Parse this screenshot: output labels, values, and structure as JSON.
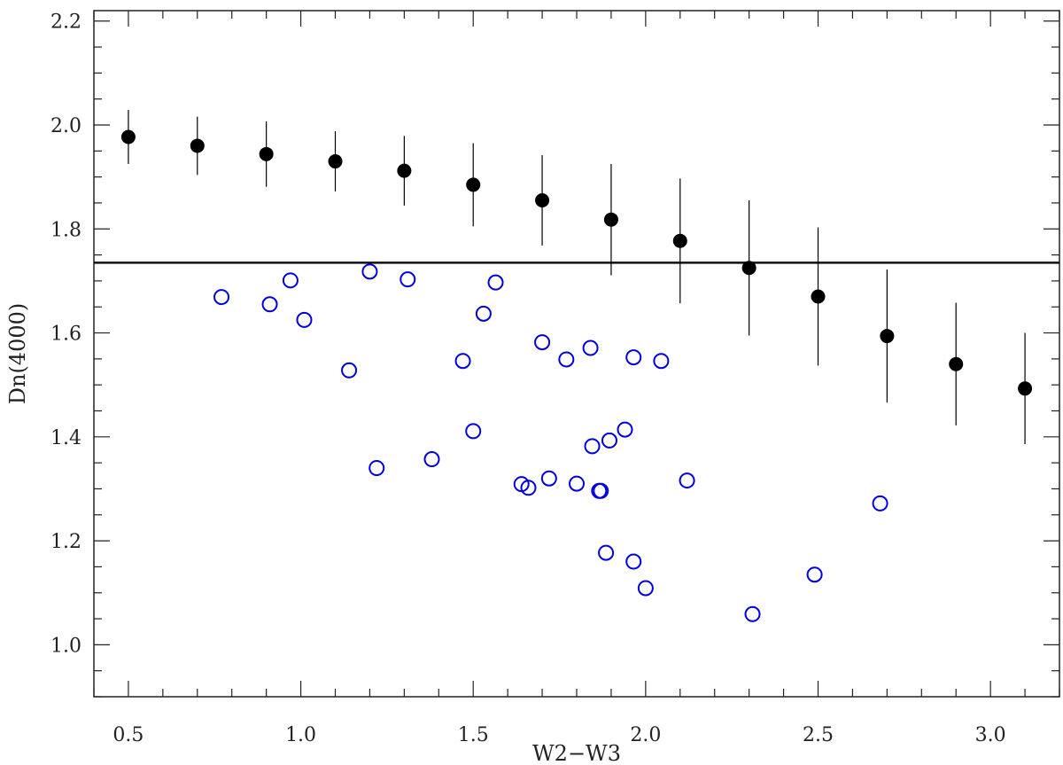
{
  "chart_data": {
    "type": "scatter",
    "title": "",
    "xlabel": "W2−W3",
    "ylabel": "Dn(4000)",
    "xlim": [
      0.4,
      3.2
    ],
    "ylim": [
      0.9,
      2.22
    ],
    "x_ticks_major": [
      0.5,
      1.0,
      1.5,
      2.0,
      2.5,
      3.0
    ],
    "x_tick_labels": [
      "0.5",
      "1.0",
      "1.5",
      "2.0",
      "2.5",
      "3.0"
    ],
    "y_ticks_major": [
      1.0,
      1.2,
      1.4,
      1.6,
      1.8,
      2.0,
      2.2
    ],
    "y_tick_labels": [
      "1.0",
      "1.2",
      "1.4",
      "1.6",
      "1.8",
      "2.0",
      "2.2"
    ],
    "horizontal_line": 1.735,
    "colors": {
      "binned": "#000000",
      "individual": "#0000dd",
      "axes": "#222222"
    },
    "series": [
      {
        "name": "binned-mean",
        "style": "filled-circle-errorbar",
        "x": [
          0.5,
          0.7,
          0.9,
          1.1,
          1.3,
          1.5,
          1.7,
          1.9,
          2.1,
          2.3,
          2.5,
          2.7,
          2.9,
          3.1
        ],
        "y": [
          1.977,
          1.96,
          1.944,
          1.93,
          1.912,
          1.885,
          1.855,
          1.818,
          1.777,
          1.725,
          1.67,
          1.594,
          1.54,
          1.493
        ],
        "err": [
          0.052,
          0.056,
          0.063,
          0.058,
          0.067,
          0.08,
          0.087,
          0.107,
          0.12,
          0.13,
          0.133,
          0.128,
          0.118,
          0.107
        ]
      },
      {
        "name": "individual-galaxies",
        "style": "open-circle",
        "x": [
          0.77,
          0.91,
          0.97,
          1.01,
          1.14,
          1.2,
          1.22,
          1.31,
          1.38,
          1.47,
          1.5,
          1.53,
          1.565,
          1.64,
          1.66,
          1.7,
          1.72,
          1.77,
          1.8,
          1.84,
          1.845,
          1.865,
          1.87,
          1.885,
          1.895,
          1.94,
          1.965,
          1.965,
          2.0,
          2.045,
          2.12,
          2.31,
          2.49,
          2.68
        ],
        "y": [
          1.669,
          1.655,
          1.701,
          1.625,
          1.528,
          1.718,
          1.34,
          1.703,
          1.357,
          1.546,
          1.411,
          1.637,
          1.697,
          1.309,
          1.302,
          1.582,
          1.32,
          1.549,
          1.31,
          1.571,
          1.382,
          1.296,
          1.296,
          1.177,
          1.393,
          1.414,
          1.553,
          1.16,
          1.109,
          1.546,
          1.316,
          1.059,
          1.135,
          1.272
        ]
      }
    ]
  }
}
